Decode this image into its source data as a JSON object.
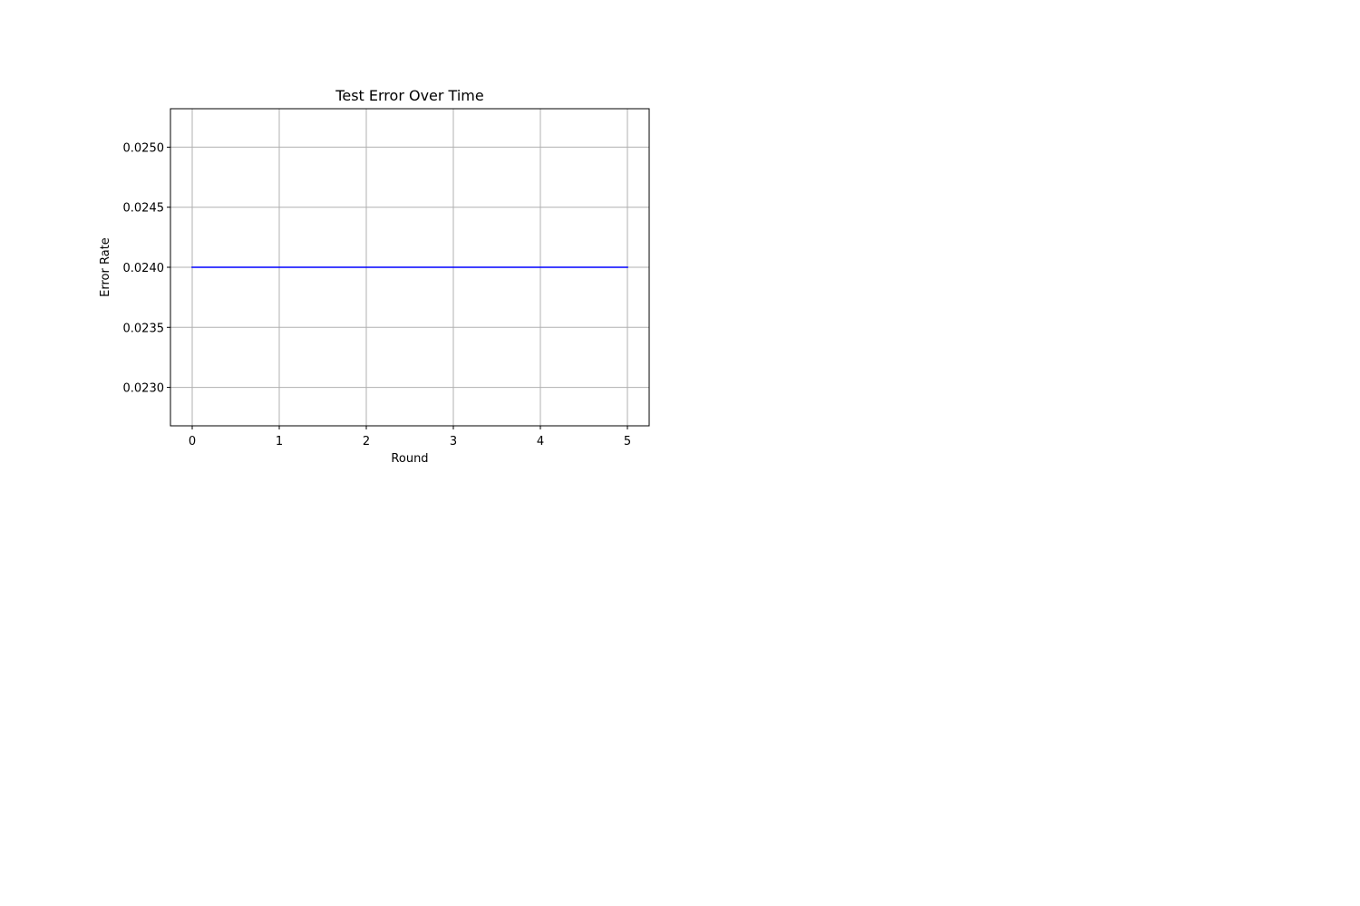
{
  "chart_data": {
    "type": "line",
    "title": "Test Error Over Time",
    "xlabel": "Round",
    "ylabel": "Error Rate",
    "xlim": [
      -0.25,
      5.25
    ],
    "ylim": [
      0.02268,
      0.02532
    ],
    "xticks": [
      0,
      1,
      2,
      3,
      4,
      5
    ],
    "xtick_labels": [
      "0",
      "1",
      "2",
      "3",
      "4",
      "5"
    ],
    "yticks": [
      0.023,
      0.0235,
      0.024,
      0.0245,
      0.025
    ],
    "ytick_labels": [
      "0.0230",
      "0.0235",
      "0.0240",
      "0.0245",
      "0.0250"
    ],
    "grid": true,
    "series": [
      {
        "x": [
          0,
          1,
          2,
          3,
          4,
          5
        ],
        "y": [
          0.024,
          0.024,
          0.024,
          0.024,
          0.024,
          0.024
        ],
        "color": "#0000ff"
      }
    ]
  }
}
